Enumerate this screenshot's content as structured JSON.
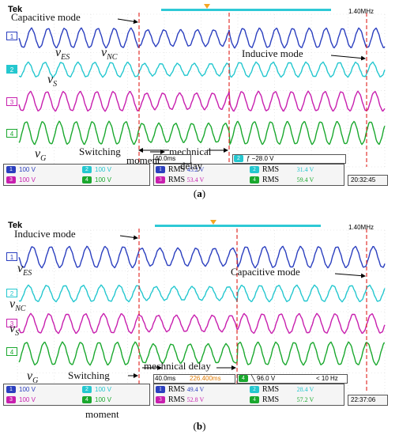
{
  "panel_a": {
    "brand": "Tek",
    "frequency": "1.40MHz",
    "caption_letter": "a",
    "annotations": {
      "capacitive_mode": "Capacitive mode",
      "inducive_mode": "Inducive mode",
      "switching": "Switching",
      "moment": "moment",
      "mechnical": "mechnical",
      "delay": "delay"
    },
    "symbols": {
      "v_es": "ES",
      "v_nc": "NC",
      "v_s": "S",
      "v_g": "G",
      "v": "v"
    },
    "channels": [
      {
        "id": "1",
        "scale": "100 V",
        "color": "#2b3fbf"
      },
      {
        "id": "2",
        "scale": "100 V",
        "color": "#24c7cf"
      },
      {
        "id": "3",
        "scale": "100 V",
        "color": "#c81fae"
      },
      {
        "id": "4",
        "scale": "100 V",
        "color": "#1aa82e"
      }
    ],
    "timebase": "40.0ms",
    "trigger": "ƒ −28.0 V",
    "measurements": [
      {
        "ch": "1",
        "label": "RMS",
        "value": "45.2 V"
      },
      {
        "ch": "2",
        "label": "RMS",
        "value": "31.4 V"
      },
      {
        "ch": "3",
        "label": "RMS",
        "value": "53.4 V"
      },
      {
        "ch": "4",
        "label": "RMS",
        "value": "59.4 V"
      }
    ],
    "time": "20:32:45"
  },
  "panel_b": {
    "brand": "Tek",
    "frequency": "1.40MHz",
    "caption_letter": "b",
    "annotations": {
      "inducive_mode": "Inducive mode",
      "capacitive_mode": "Capacitive mode",
      "switching": "Switching",
      "moment": "moment",
      "mechnical_delay": "mechnical delay"
    },
    "symbols": {
      "v_es": "ES",
      "v_nc": "NC",
      "v_s": "S",
      "v_g": "G",
      "v": "v"
    },
    "channels": [
      {
        "id": "1",
        "scale": "100 V",
        "color": "#2b3fbf"
      },
      {
        "id": "2",
        "scale": "100 V",
        "color": "#24c7cf"
      },
      {
        "id": "3",
        "scale": "100 V",
        "color": "#c81fae"
      },
      {
        "id": "4",
        "scale": "100 V",
        "color": "#1aa82e"
      }
    ],
    "timebase": "40.0ms",
    "offset": "226.400ms",
    "trigger": "╲ 96.0 V",
    "trigger_freq": "< 10 Hz",
    "measurements": [
      {
        "ch": "1",
        "label": "RMS",
        "value": "49.4 V"
      },
      {
        "ch": "2",
        "label": "RMS",
        "value": "28.4 V"
      },
      {
        "ch": "3",
        "label": "RMS",
        "value": "52.8 V"
      },
      {
        "ch": "4",
        "label": "RMS",
        "value": "57.2 V"
      }
    ],
    "time": "22:37:06"
  }
}
